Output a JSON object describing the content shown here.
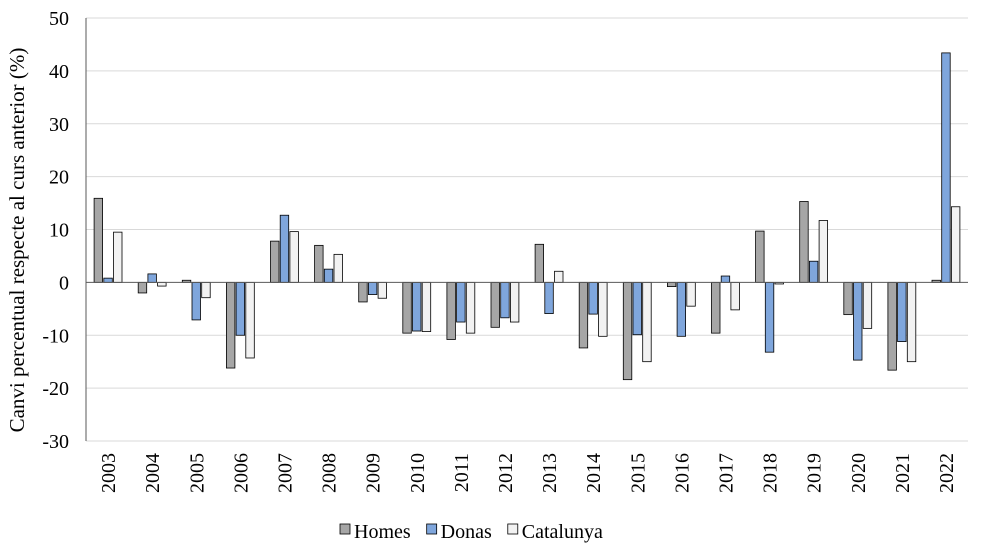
{
  "chart_data": {
    "type": "bar",
    "title": "",
    "xlabel": "",
    "ylabel": "Canvi percentual respecte al curs anterior (%)",
    "ylim": [
      -30,
      50
    ],
    "yticks": [
      -30,
      -20,
      -10,
      0,
      10,
      20,
      30,
      40,
      50
    ],
    "grid": true,
    "legend_position": "bottom-center",
    "categories": [
      "2003",
      "2004",
      "2005",
      "2006",
      "2007",
      "2008",
      "2009",
      "2010",
      "2011",
      "2012",
      "2013",
      "2014",
      "2015",
      "2016",
      "2017",
      "2018",
      "2019",
      "2020",
      "2021",
      "2022"
    ],
    "series": [
      {
        "name": "Homes",
        "color": "#a6a6a6",
        "values": [
          15.9,
          -2.0,
          0.4,
          -16.2,
          7.8,
          7.0,
          -3.7,
          -9.6,
          -10.8,
          -8.5,
          7.2,
          -12.4,
          -18.4,
          -0.8,
          -9.6,
          9.7,
          15.3,
          -6.1,
          -16.6,
          0.4
        ]
      },
      {
        "name": "Donas",
        "color": "#7fa6dc",
        "values": [
          0.8,
          1.6,
          -7.1,
          -10.0,
          12.7,
          2.5,
          -2.3,
          -9.2,
          -7.5,
          -6.7,
          -5.9,
          -6.0,
          -9.9,
          -10.2,
          1.2,
          -13.2,
          4.0,
          -14.7,
          -11.2,
          43.4
        ]
      },
      {
        "name": "Catalunya",
        "color": "#f2f2f2",
        "values": [
          9.5,
          -0.7,
          -2.9,
          -14.3,
          9.6,
          5.3,
          -3.0,
          -9.3,
          -9.6,
          -7.5,
          2.1,
          -10.2,
          -15.0,
          -4.5,
          -5.2,
          -0.3,
          11.7,
          -8.7,
          -15.0,
          14.3
        ]
      }
    ]
  }
}
